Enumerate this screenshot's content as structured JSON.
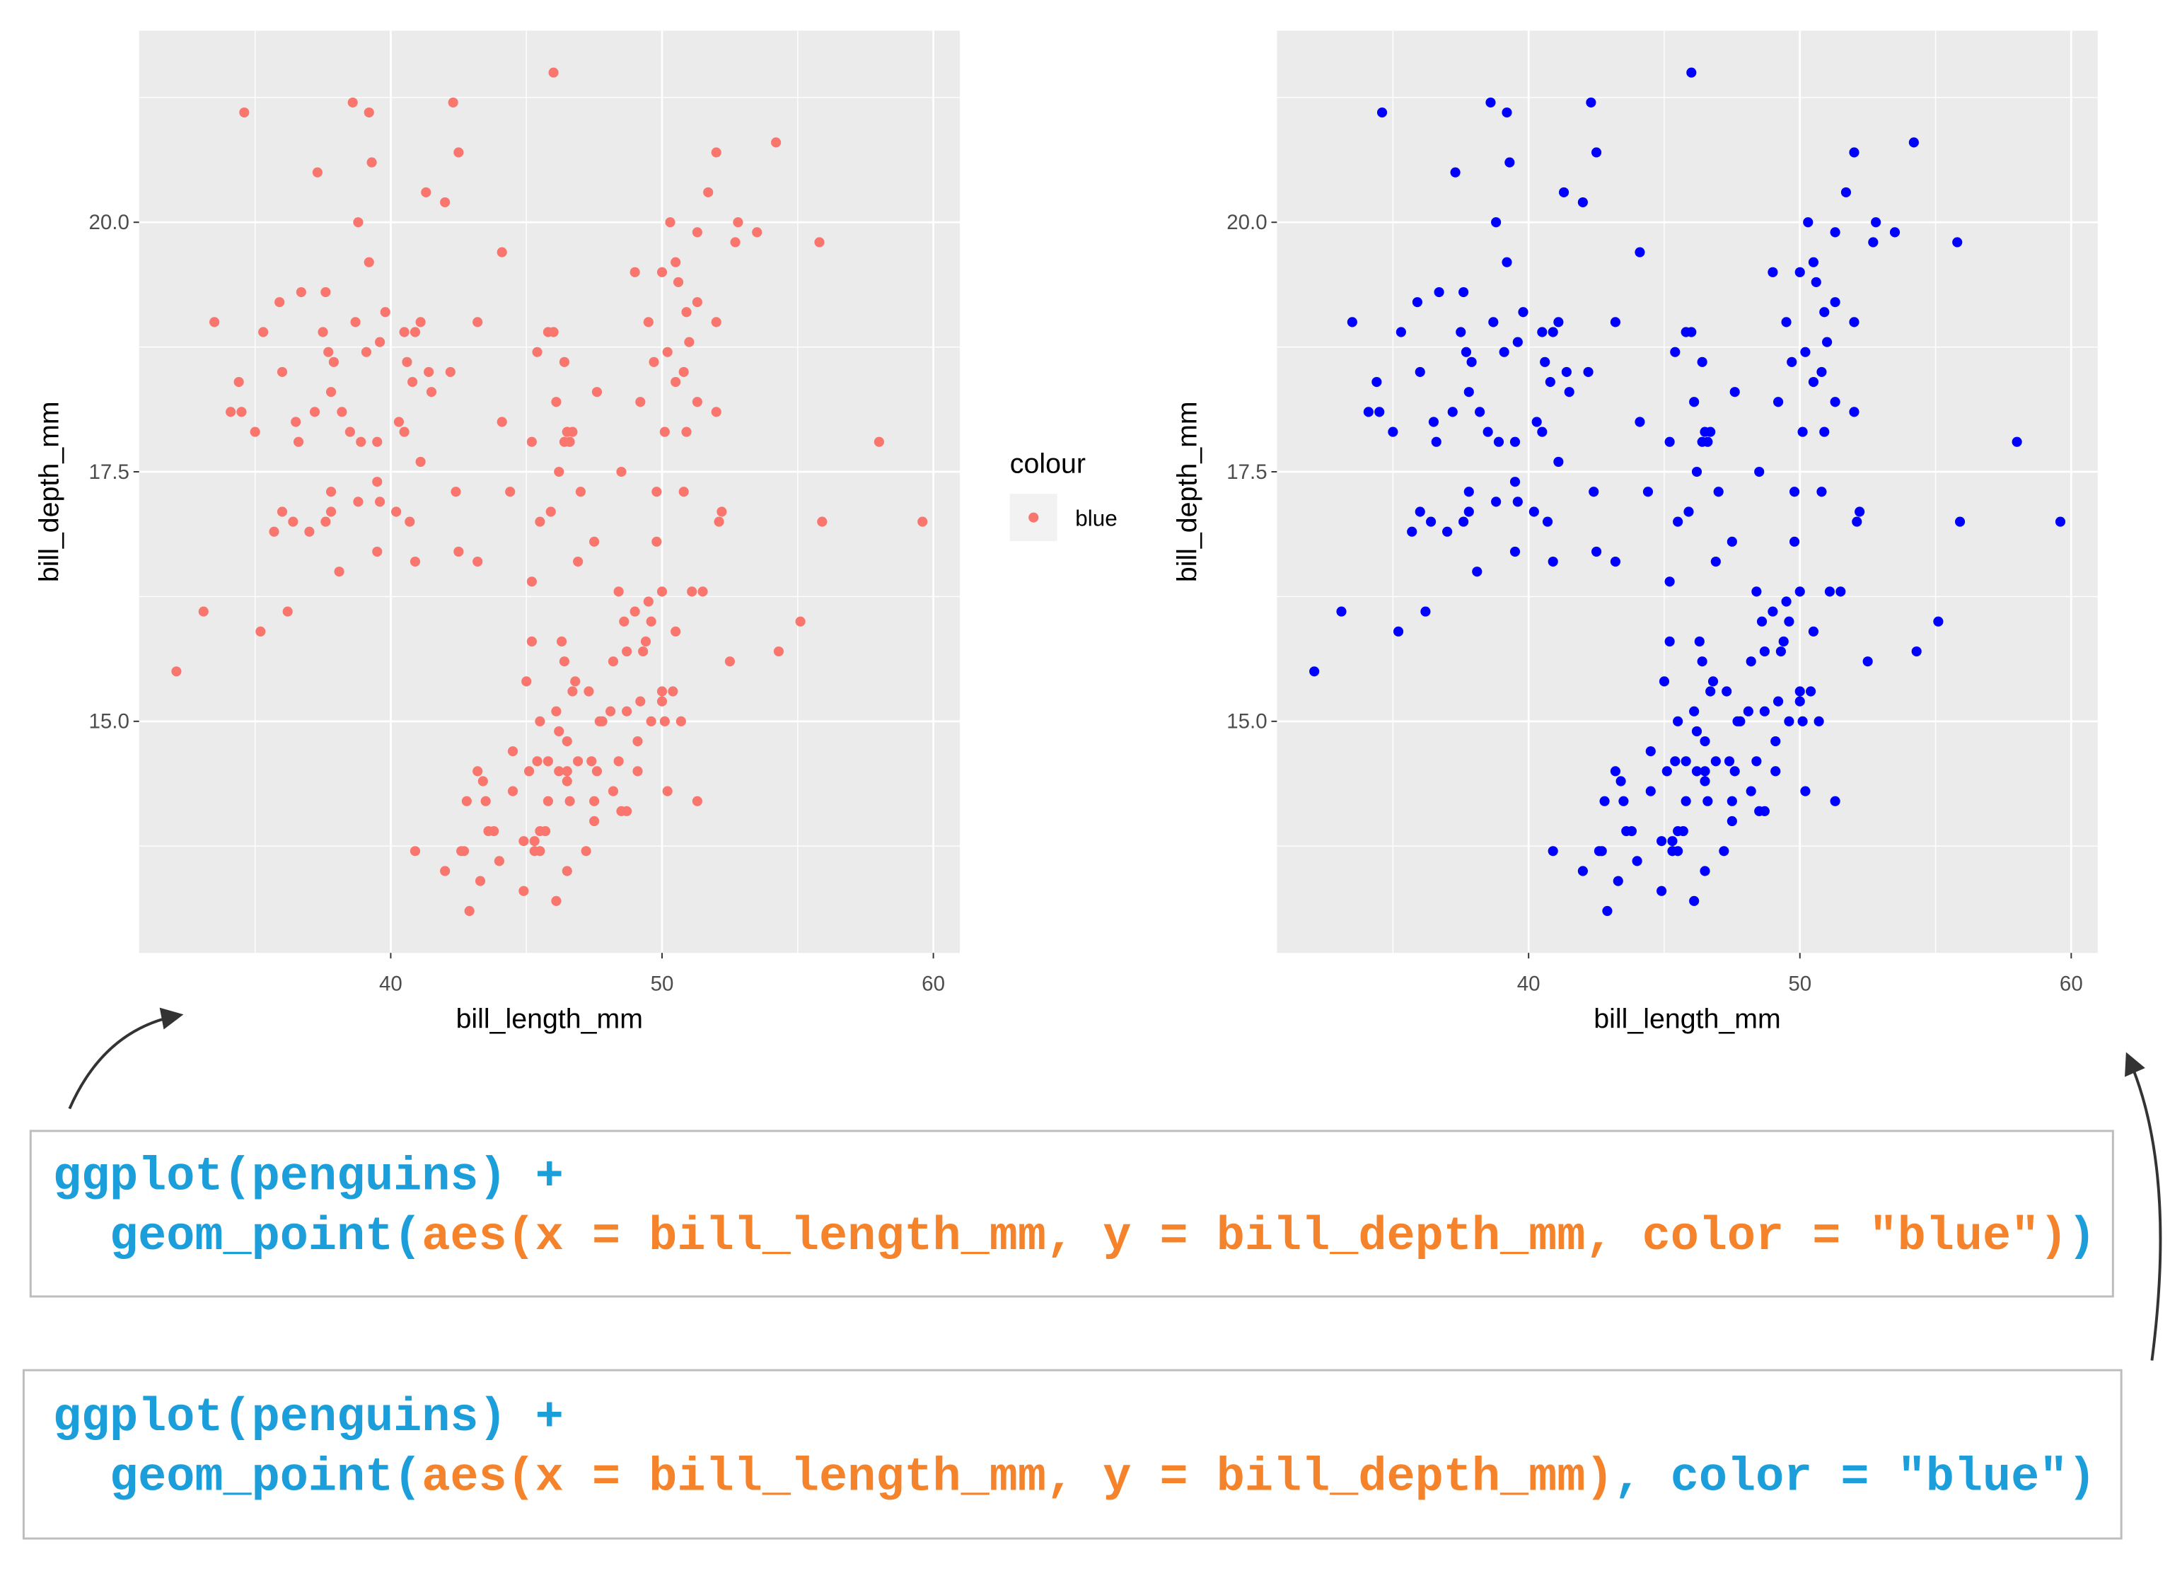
{
  "chart_data": [
    {
      "type": "scatter",
      "xlabel": "bill_length_mm",
      "ylabel": "bill_depth_mm",
      "legend_title": "colour",
      "legend": "right",
      "xlim": [
        30.725,
        60.975
      ],
      "ylim": [
        12.68,
        21.92
      ],
      "xticks": [
        40,
        50,
        60
      ],
      "yticks": [
        {
          "value": 15,
          "label": "15.0"
        },
        17.5,
        {
          "value": 20,
          "label": "20.0"
        }
      ],
      "xminor": [
        35,
        45,
        55
      ],
      "yminor": [
        13.75,
        16.25,
        18.75,
        21.25
      ],
      "grid": true,
      "background": "#EBEBEB",
      "x": [
        39.1,
        39.5,
        40.3,
        36.7,
        39.3,
        38.9,
        39.2,
        34.1,
        42,
        37.8,
        37.8,
        41.1,
        38.6,
        34.6,
        36.6,
        38.7,
        42.5,
        34.4,
        46,
        37.8,
        37.7,
        35.9,
        38.2,
        38.8,
        35.3,
        40.6,
        40.5,
        37.9,
        40.5,
        39.5,
        37.2,
        39.5,
        40.9,
        36.4,
        39.2,
        38.8,
        42.2,
        37.6,
        39.8,
        36.5,
        40.8,
        36,
        44.1,
        37,
        39.6,
        41.1,
        37.5,
        42.3,
        39.6,
        40.7,
        35.7,
        41.4,
        35.2,
        33.5,
        41.3,
        32.1,
        33.1,
        45.8,
        37.3,
        36.2,
        43.2,
        35,
        34.5,
        36,
        38.1,
        40.2,
        41.5,
        44.1,
        38.5,
        37.6,
        46.5,
        50,
        51.3,
        45.4,
        52.7,
        45.2,
        46.1,
        51.3,
        46,
        51.3,
        46.6,
        51.7,
        47,
        52,
        45.9,
        50.5,
        50.3,
        58,
        46.4,
        49.2,
        42.4,
        48.5,
        43.2,
        50.6,
        46.7,
        52,
        50.5,
        49.5,
        46.4,
        52.8,
        40.9,
        54.2,
        42.5,
        51,
        49.7,
        47.5,
        47.6,
        52,
        46.9,
        53.5,
        49,
        46.2,
        50.9,
        45.5,
        50.9,
        50.8,
        50.1,
        49.8,
        55.8,
        50.2,
        46.1,
        50,
        48.7,
        50,
        47.6,
        46.5,
        45.4,
        46.7,
        43.3,
        46.8,
        40.9,
        49,
        45.5,
        48.4,
        45.8,
        49.3,
        42,
        49.2,
        46.2,
        48.7,
        50.2,
        45.1,
        46.5,
        46.3,
        42.9,
        46.1,
        44.5,
        47.8,
        48.2,
        50,
        47.3,
        42.8,
        59.6,
        49.1,
        48.4,
        42.6,
        44.4,
        44,
        48.7,
        42.7,
        49.6,
        45.3,
        49.6,
        50.5,
        43.6,
        45.5,
        44.9,
        45.2,
        46.6,
        48.5,
        50.1,
        46.5,
        45,
        43.8,
        45.5,
        43.2,
        50.4,
        45.3,
        46.2,
        45.7,
        54.3,
        45.8,
        49.8,
        49.5,
        43.5,
        50.7,
        47.7,
        46.4,
        48.2,
        46.5,
        48.6,
        47.5,
        51.1,
        45.2,
        49.1,
        52.5,
        47.4,
        44.9,
        50.8,
        43.4,
        51.3,
        47.5,
        52.1,
        52.2,
        44.5,
        49.4,
        46.9,
        48.1,
        51.5,
        47.2,
        55.9,
        55.1
      ],
      "series": [
        {
          "name": "blue",
          "color": "#F8766D",
          "values": [
            18.7,
            17.4,
            18,
            19.3,
            20.6,
            17.8,
            19.6,
            18.1,
            20.2,
            17.1,
            17.3,
            17.6,
            21.2,
            21.1,
            17.8,
            19,
            20.7,
            18.4,
            21.5,
            18.3,
            18.7,
            19.2,
            18.1,
            17.2,
            18.9,
            18.6,
            17.9,
            18.6,
            18.9,
            16.7,
            18.1,
            17.8,
            18.9,
            17,
            21.1,
            20,
            18.5,
            19.3,
            19.1,
            18,
            18.4,
            18.5,
            19.7,
            16.9,
            18.8,
            19,
            18.9,
            21.2,
            17.2,
            17,
            16.9,
            18.5,
            15.9,
            19,
            20.3,
            15.5,
            16.1,
            18.9,
            20.5,
            16.1,
            19,
            17.9,
            18.1,
            17.1,
            16.5,
            17.1,
            18.3,
            18,
            17.9,
            17,
            17.9,
            19.5,
            19.2,
            18.7,
            19.8,
            17.8,
            18.2,
            18.2,
            18.9,
            19.9,
            17.8,
            20.3,
            17.3,
            18.1,
            17.1,
            19.6,
            20,
            17.8,
            18.6,
            18.2,
            17.3,
            17.5,
            16.6,
            19.4,
            17.9,
            19,
            18.4,
            19,
            17.8,
            20,
            16.6,
            20.8,
            16.7,
            18.8,
            18.6,
            16.8,
            18.3,
            20.7,
            16.6,
            19.9,
            19.5,
            17.5,
            19.1,
            17,
            17.9,
            18.5,
            17.9,
            17.3,
            19.8,
            18.7,
            13.2,
            16.3,
            14.1,
            15.2,
            14.5,
            13.5,
            14.6,
            15.3,
            13.4,
            15.4,
            13.7,
            16.1,
            13.7,
            14.6,
            14.6,
            15.7,
            13.5,
            15.2,
            14.5,
            15.1,
            14.3,
            14.5,
            14.5,
            15.8,
            13.1,
            15.1,
            14.3,
            15,
            14.3,
            15.3,
            15.3,
            14.2,
            17,
            14.8,
            16.3,
            13.7,
            17.3,
            13.6,
            15.7,
            13.7,
            16,
            13.7,
            15,
            15.9,
            13.9,
            13.9,
            13.3,
            15.8,
            14.2,
            14.1,
            15,
            14.4,
            15.4,
            13.9,
            15,
            14.5,
            15.3,
            13.8,
            14.9,
            13.9,
            15.7,
            14.2,
            16.8,
            16.2,
            14.2,
            15,
            15,
            15.6,
            15.6,
            14.8,
            16,
            14.2,
            16.3,
            16.4,
            14.5,
            15.6,
            14.6,
            13.8,
            17.3,
            14.4,
            14.2,
            14,
            17,
            17.1,
            14.7,
            15.8,
            14.6,
            15.1,
            16.3,
            13.7,
            17,
            16
          ]
        }
      ]
    },
    {
      "type": "scatter",
      "xlabel": "bill_length_mm",
      "ylabel": "bill_depth_mm",
      "xlim": [
        30.725,
        60.975
      ],
      "ylim": [
        12.68,
        21.92
      ],
      "xticks": [
        40,
        50,
        60
      ],
      "yticks": [
        {
          "value": 15,
          "label": "15.0"
        },
        17.5,
        {
          "value": 20,
          "label": "20.0"
        }
      ],
      "xminor": [
        35,
        45,
        55
      ],
      "yminor": [
        13.75,
        16.25,
        18.75,
        21.25
      ],
      "grid": true,
      "background": "#EBEBEB",
      "x": [
        39.1,
        39.5,
        40.3,
        36.7,
        39.3,
        38.9,
        39.2,
        34.1,
        42,
        37.8,
        37.8,
        41.1,
        38.6,
        34.6,
        36.6,
        38.7,
        42.5,
        34.4,
        46,
        37.8,
        37.7,
        35.9,
        38.2,
        38.8,
        35.3,
        40.6,
        40.5,
        37.9,
        40.5,
        39.5,
        37.2,
        39.5,
        40.9,
        36.4,
        39.2,
        38.8,
        42.2,
        37.6,
        39.8,
        36.5,
        40.8,
        36,
        44.1,
        37,
        39.6,
        41.1,
        37.5,
        42.3,
        39.6,
        40.7,
        35.7,
        41.4,
        35.2,
        33.5,
        41.3,
        32.1,
        33.1,
        45.8,
        37.3,
        36.2,
        43.2,
        35,
        34.5,
        36,
        38.1,
        40.2,
        41.5,
        44.1,
        38.5,
        37.6,
        46.5,
        50,
        51.3,
        45.4,
        52.7,
        45.2,
        46.1,
        51.3,
        46,
        51.3,
        46.6,
        51.7,
        47,
        52,
        45.9,
        50.5,
        50.3,
        58,
        46.4,
        49.2,
        42.4,
        48.5,
        43.2,
        50.6,
        46.7,
        52,
        50.5,
        49.5,
        46.4,
        52.8,
        40.9,
        54.2,
        42.5,
        51,
        49.7,
        47.5,
        47.6,
        52,
        46.9,
        53.5,
        49,
        46.2,
        50.9,
        45.5,
        50.9,
        50.8,
        50.1,
        49.8,
        55.8,
        50.2,
        46.1,
        50,
        48.7,
        50,
        47.6,
        46.5,
        45.4,
        46.7,
        43.3,
        46.8,
        40.9,
        49,
        45.5,
        48.4,
        45.8,
        49.3,
        42,
        49.2,
        46.2,
        48.7,
        50.2,
        45.1,
        46.5,
        46.3,
        42.9,
        46.1,
        44.5,
        47.8,
        48.2,
        50,
        47.3,
        42.8,
        59.6,
        49.1,
        48.4,
        42.6,
        44.4,
        44,
        48.7,
        42.7,
        49.6,
        45.3,
        49.6,
        50.5,
        43.6,
        45.5,
        44.9,
        45.2,
        46.6,
        48.5,
        50.1,
        46.5,
        45,
        43.8,
        45.5,
        43.2,
        50.4,
        45.3,
        46.2,
        45.7,
        54.3,
        45.8,
        49.8,
        49.5,
        43.5,
        50.7,
        47.7,
        46.4,
        48.2,
        46.5,
        48.6,
        47.5,
        51.1,
        45.2,
        49.1,
        52.5,
        47.4,
        44.9,
        50.8,
        43.4,
        51.3,
        47.5,
        52.1,
        52.2,
        44.5,
        49.4,
        46.9,
        48.1,
        51.5,
        47.2,
        55.9,
        55.1
      ],
      "series": [
        {
          "color": "#0000FF",
          "values": [
            18.7,
            17.4,
            18,
            19.3,
            20.6,
            17.8,
            19.6,
            18.1,
            20.2,
            17.1,
            17.3,
            17.6,
            21.2,
            21.1,
            17.8,
            19,
            20.7,
            18.4,
            21.5,
            18.3,
            18.7,
            19.2,
            18.1,
            17.2,
            18.9,
            18.6,
            17.9,
            18.6,
            18.9,
            16.7,
            18.1,
            17.8,
            18.9,
            17,
            21.1,
            20,
            18.5,
            19.3,
            19.1,
            18,
            18.4,
            18.5,
            19.7,
            16.9,
            18.8,
            19,
            18.9,
            21.2,
            17.2,
            17,
            16.9,
            18.5,
            15.9,
            19,
            20.3,
            15.5,
            16.1,
            18.9,
            20.5,
            16.1,
            19,
            17.9,
            18.1,
            17.1,
            16.5,
            17.1,
            18.3,
            18,
            17.9,
            17,
            17.9,
            19.5,
            19.2,
            18.7,
            19.8,
            17.8,
            18.2,
            18.2,
            18.9,
            19.9,
            17.8,
            20.3,
            17.3,
            18.1,
            17.1,
            19.6,
            20,
            17.8,
            18.6,
            18.2,
            17.3,
            17.5,
            16.6,
            19.4,
            17.9,
            19,
            18.4,
            19,
            17.8,
            20,
            16.6,
            20.8,
            16.7,
            18.8,
            18.6,
            16.8,
            18.3,
            20.7,
            16.6,
            19.9,
            19.5,
            17.5,
            19.1,
            17,
            17.9,
            18.5,
            17.9,
            17.3,
            19.8,
            18.7,
            13.2,
            16.3,
            14.1,
            15.2,
            14.5,
            13.5,
            14.6,
            15.3,
            13.4,
            15.4,
            13.7,
            16.1,
            13.7,
            14.6,
            14.6,
            15.7,
            13.5,
            15.2,
            14.5,
            15.1,
            14.3,
            14.5,
            14.5,
            15.8,
            13.1,
            15.1,
            14.3,
            15,
            14.3,
            15.3,
            15.3,
            14.2,
            17,
            14.8,
            16.3,
            13.7,
            17.3,
            13.6,
            15.7,
            13.7,
            16,
            13.7,
            15,
            15.9,
            13.9,
            13.9,
            13.3,
            15.8,
            14.2,
            14.1,
            15,
            14.4,
            15.4,
            13.9,
            15,
            14.5,
            15.3,
            13.8,
            14.9,
            13.9,
            15.7,
            14.2,
            16.8,
            16.2,
            14.2,
            15,
            15,
            15.6,
            15.6,
            14.8,
            16,
            14.2,
            16.3,
            16.4,
            14.5,
            15.6,
            14.6,
            13.8,
            17.3,
            14.4,
            14.2,
            14,
            17,
            17.1,
            14.7,
            15.8,
            14.6,
            15.1,
            16.3,
            13.7,
            17,
            16
          ]
        }
      ]
    }
  ],
  "code": [
    {
      "lines": [
        [
          {
            "text": "ggplot(penguins) +",
            "color": "#1B9EDA"
          }
        ],
        [
          {
            "text": "  geom_point(",
            "color": "#1B9EDA"
          },
          {
            "text": "aes(x = bill_length_mm, y = bill_depth_mm, color = \"blue\")",
            "color": "#F5832B"
          },
          {
            "text": ")",
            "color": "#1B9EDA"
          }
        ]
      ]
    },
    {
      "lines": [
        [
          {
            "text": "ggplot(penguins) +",
            "color": "#1B9EDA"
          }
        ],
        [
          {
            "text": "  geom_point(",
            "color": "#1B9EDA"
          },
          {
            "text": "aes(x = bill_length_mm, y = bill_depth_mm)",
            "color": "#F5832B"
          },
          {
            "text": ", color = \"blue\")",
            "color": "#1B9EDA"
          }
        ]
      ]
    }
  ]
}
